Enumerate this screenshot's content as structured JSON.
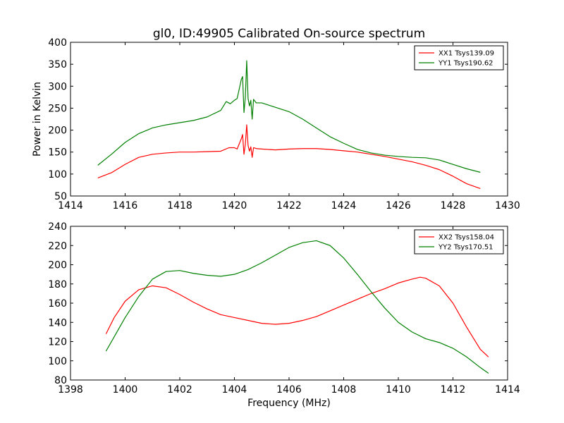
{
  "figure": {
    "title": "gl0, ID:49905 Calibrated On-source spectrum"
  },
  "colors": {
    "xx": "#ff0000",
    "yy": "#008000"
  },
  "chart_data": [
    {
      "type": "line",
      "title": "gl0, ID:49905 Calibrated On-source spectrum",
      "xlabel": "",
      "ylabel": "Power in Kelvin",
      "xlim": [
        1414,
        1430
      ],
      "ylim": [
        50,
        400
      ],
      "xticks": [
        1414,
        1416,
        1418,
        1420,
        1422,
        1424,
        1426,
        1428,
        1430
      ],
      "yticks": [
        50,
        100,
        150,
        200,
        250,
        300,
        350,
        400
      ],
      "grid": false,
      "legend": "top-right",
      "series": [
        {
          "name": "XX1 Tsys139.09",
          "color": "#ff0000",
          "points": [
            [
              1415.0,
              91
            ],
            [
              1415.5,
              103
            ],
            [
              1416.0,
              122
            ],
            [
              1416.5,
              138
            ],
            [
              1417.0,
              145
            ],
            [
              1417.5,
              148
            ],
            [
              1418.0,
              150
            ],
            [
              1418.5,
              150
            ],
            [
              1419.0,
              151
            ],
            [
              1419.5,
              152
            ],
            [
              1419.8,
              160
            ],
            [
              1420.0,
              160
            ],
            [
              1420.1,
              157
            ],
            [
              1420.25,
              180
            ],
            [
              1420.3,
              190
            ],
            [
              1420.35,
              145
            ],
            [
              1420.4,
              168
            ],
            [
              1420.45,
              212
            ],
            [
              1420.5,
              165
            ],
            [
              1420.55,
              152
            ],
            [
              1420.6,
              162
            ],
            [
              1420.65,
              138
            ],
            [
              1420.7,
              160
            ],
            [
              1420.8,
              158
            ],
            [
              1421.0,
              157
            ],
            [
              1421.5,
              155
            ],
            [
              1422.0,
              157
            ],
            [
              1422.5,
              158
            ],
            [
              1423.0,
              158
            ],
            [
              1423.5,
              156
            ],
            [
              1424.0,
              153
            ],
            [
              1424.5,
              150
            ],
            [
              1425.0,
              145
            ],
            [
              1425.5,
              140
            ],
            [
              1426.0,
              134
            ],
            [
              1426.5,
              128
            ],
            [
              1427.0,
              120
            ],
            [
              1427.5,
              110
            ],
            [
              1428.0,
              95
            ],
            [
              1428.5,
              78
            ],
            [
              1429.0,
              67
            ]
          ]
        },
        {
          "name": "YY1 Tsys190.62",
          "color": "#008000",
          "points": [
            [
              1415.0,
              120
            ],
            [
              1415.5,
              145
            ],
            [
              1416.0,
              172
            ],
            [
              1416.5,
              192
            ],
            [
              1417.0,
              205
            ],
            [
              1417.5,
              212
            ],
            [
              1418.0,
              217
            ],
            [
              1418.5,
              222
            ],
            [
              1419.0,
              230
            ],
            [
              1419.5,
              245
            ],
            [
              1419.7,
              265
            ],
            [
              1419.85,
              260
            ],
            [
              1420.0,
              268
            ],
            [
              1420.1,
              272
            ],
            [
              1420.2,
              300
            ],
            [
              1420.25,
              315
            ],
            [
              1420.3,
              322
            ],
            [
              1420.35,
              240
            ],
            [
              1420.4,
              275
            ],
            [
              1420.45,
              358
            ],
            [
              1420.5,
              272
            ],
            [
              1420.55,
              255
            ],
            [
              1420.6,
              268
            ],
            [
              1420.65,
              225
            ],
            [
              1420.7,
              270
            ],
            [
              1420.8,
              262
            ],
            [
              1421.0,
              262
            ],
            [
              1421.5,
              252
            ],
            [
              1422.0,
              242
            ],
            [
              1422.5,
              225
            ],
            [
              1423.0,
              205
            ],
            [
              1423.5,
              185
            ],
            [
              1424.0,
              170
            ],
            [
              1424.5,
              156
            ],
            [
              1425.0,
              148
            ],
            [
              1425.5,
              143
            ],
            [
              1426.0,
              140
            ],
            [
              1426.5,
              138
            ],
            [
              1427.0,
              137
            ],
            [
              1427.5,
              132
            ],
            [
              1428.0,
              122
            ],
            [
              1428.5,
              112
            ],
            [
              1429.0,
              104
            ]
          ]
        }
      ]
    },
    {
      "type": "line",
      "title": "",
      "xlabel": "Frequency (MHz)",
      "ylabel": "",
      "xlim": [
        1398,
        1414
      ],
      "ylim": [
        80,
        240
      ],
      "xticks": [
        1398,
        1400,
        1402,
        1404,
        1406,
        1408,
        1410,
        1412,
        1414
      ],
      "yticks": [
        80,
        100,
        120,
        140,
        160,
        180,
        200,
        220,
        240
      ],
      "grid": false,
      "legend": "top-right",
      "series": [
        {
          "name": "XX2 Tsys158.04",
          "color": "#ff0000",
          "points": [
            [
              1399.3,
              128
            ],
            [
              1399.6,
              145
            ],
            [
              1400.0,
              162
            ],
            [
              1400.5,
              174
            ],
            [
              1401.0,
              178
            ],
            [
              1401.5,
              176
            ],
            [
              1402.0,
              169
            ],
            [
              1402.5,
              161
            ],
            [
              1403.0,
              154
            ],
            [
              1403.5,
              148
            ],
            [
              1404.0,
              145
            ],
            [
              1404.5,
              142
            ],
            [
              1405.0,
              139
            ],
            [
              1405.5,
              138
            ],
            [
              1406.0,
              139
            ],
            [
              1406.5,
              142
            ],
            [
              1407.0,
              146
            ],
            [
              1407.5,
              152
            ],
            [
              1408.0,
              158
            ],
            [
              1408.5,
              164
            ],
            [
              1409.0,
              170
            ],
            [
              1409.5,
              175
            ],
            [
              1410.0,
              181
            ],
            [
              1410.5,
              185
            ],
            [
              1410.8,
              187
            ],
            [
              1411.0,
              186
            ],
            [
              1411.5,
              178
            ],
            [
              1412.0,
              160
            ],
            [
              1412.5,
              135
            ],
            [
              1413.0,
              112
            ],
            [
              1413.3,
              104
            ]
          ]
        },
        {
          "name": "YY2 Tsys170.51",
          "color": "#008000",
          "points": [
            [
              1399.3,
              110
            ],
            [
              1399.6,
              125
            ],
            [
              1400.0,
              145
            ],
            [
              1400.5,
              167
            ],
            [
              1401.0,
              185
            ],
            [
              1401.5,
              193
            ],
            [
              1402.0,
              194
            ],
            [
              1402.5,
              191
            ],
            [
              1403.0,
              189
            ],
            [
              1403.5,
              188
            ],
            [
              1404.0,
              190
            ],
            [
              1404.5,
              195
            ],
            [
              1405.0,
              202
            ],
            [
              1405.5,
              210
            ],
            [
              1406.0,
              218
            ],
            [
              1406.5,
              223
            ],
            [
              1407.0,
              225
            ],
            [
              1407.5,
              220
            ],
            [
              1408.0,
              207
            ],
            [
              1408.5,
              190
            ],
            [
              1409.0,
              172
            ],
            [
              1409.5,
              155
            ],
            [
              1410.0,
              140
            ],
            [
              1410.5,
              130
            ],
            [
              1411.0,
              123
            ],
            [
              1411.5,
              119
            ],
            [
              1412.0,
              113
            ],
            [
              1412.5,
              104
            ],
            [
              1413.0,
              93
            ],
            [
              1413.3,
              87
            ]
          ]
        }
      ]
    }
  ]
}
